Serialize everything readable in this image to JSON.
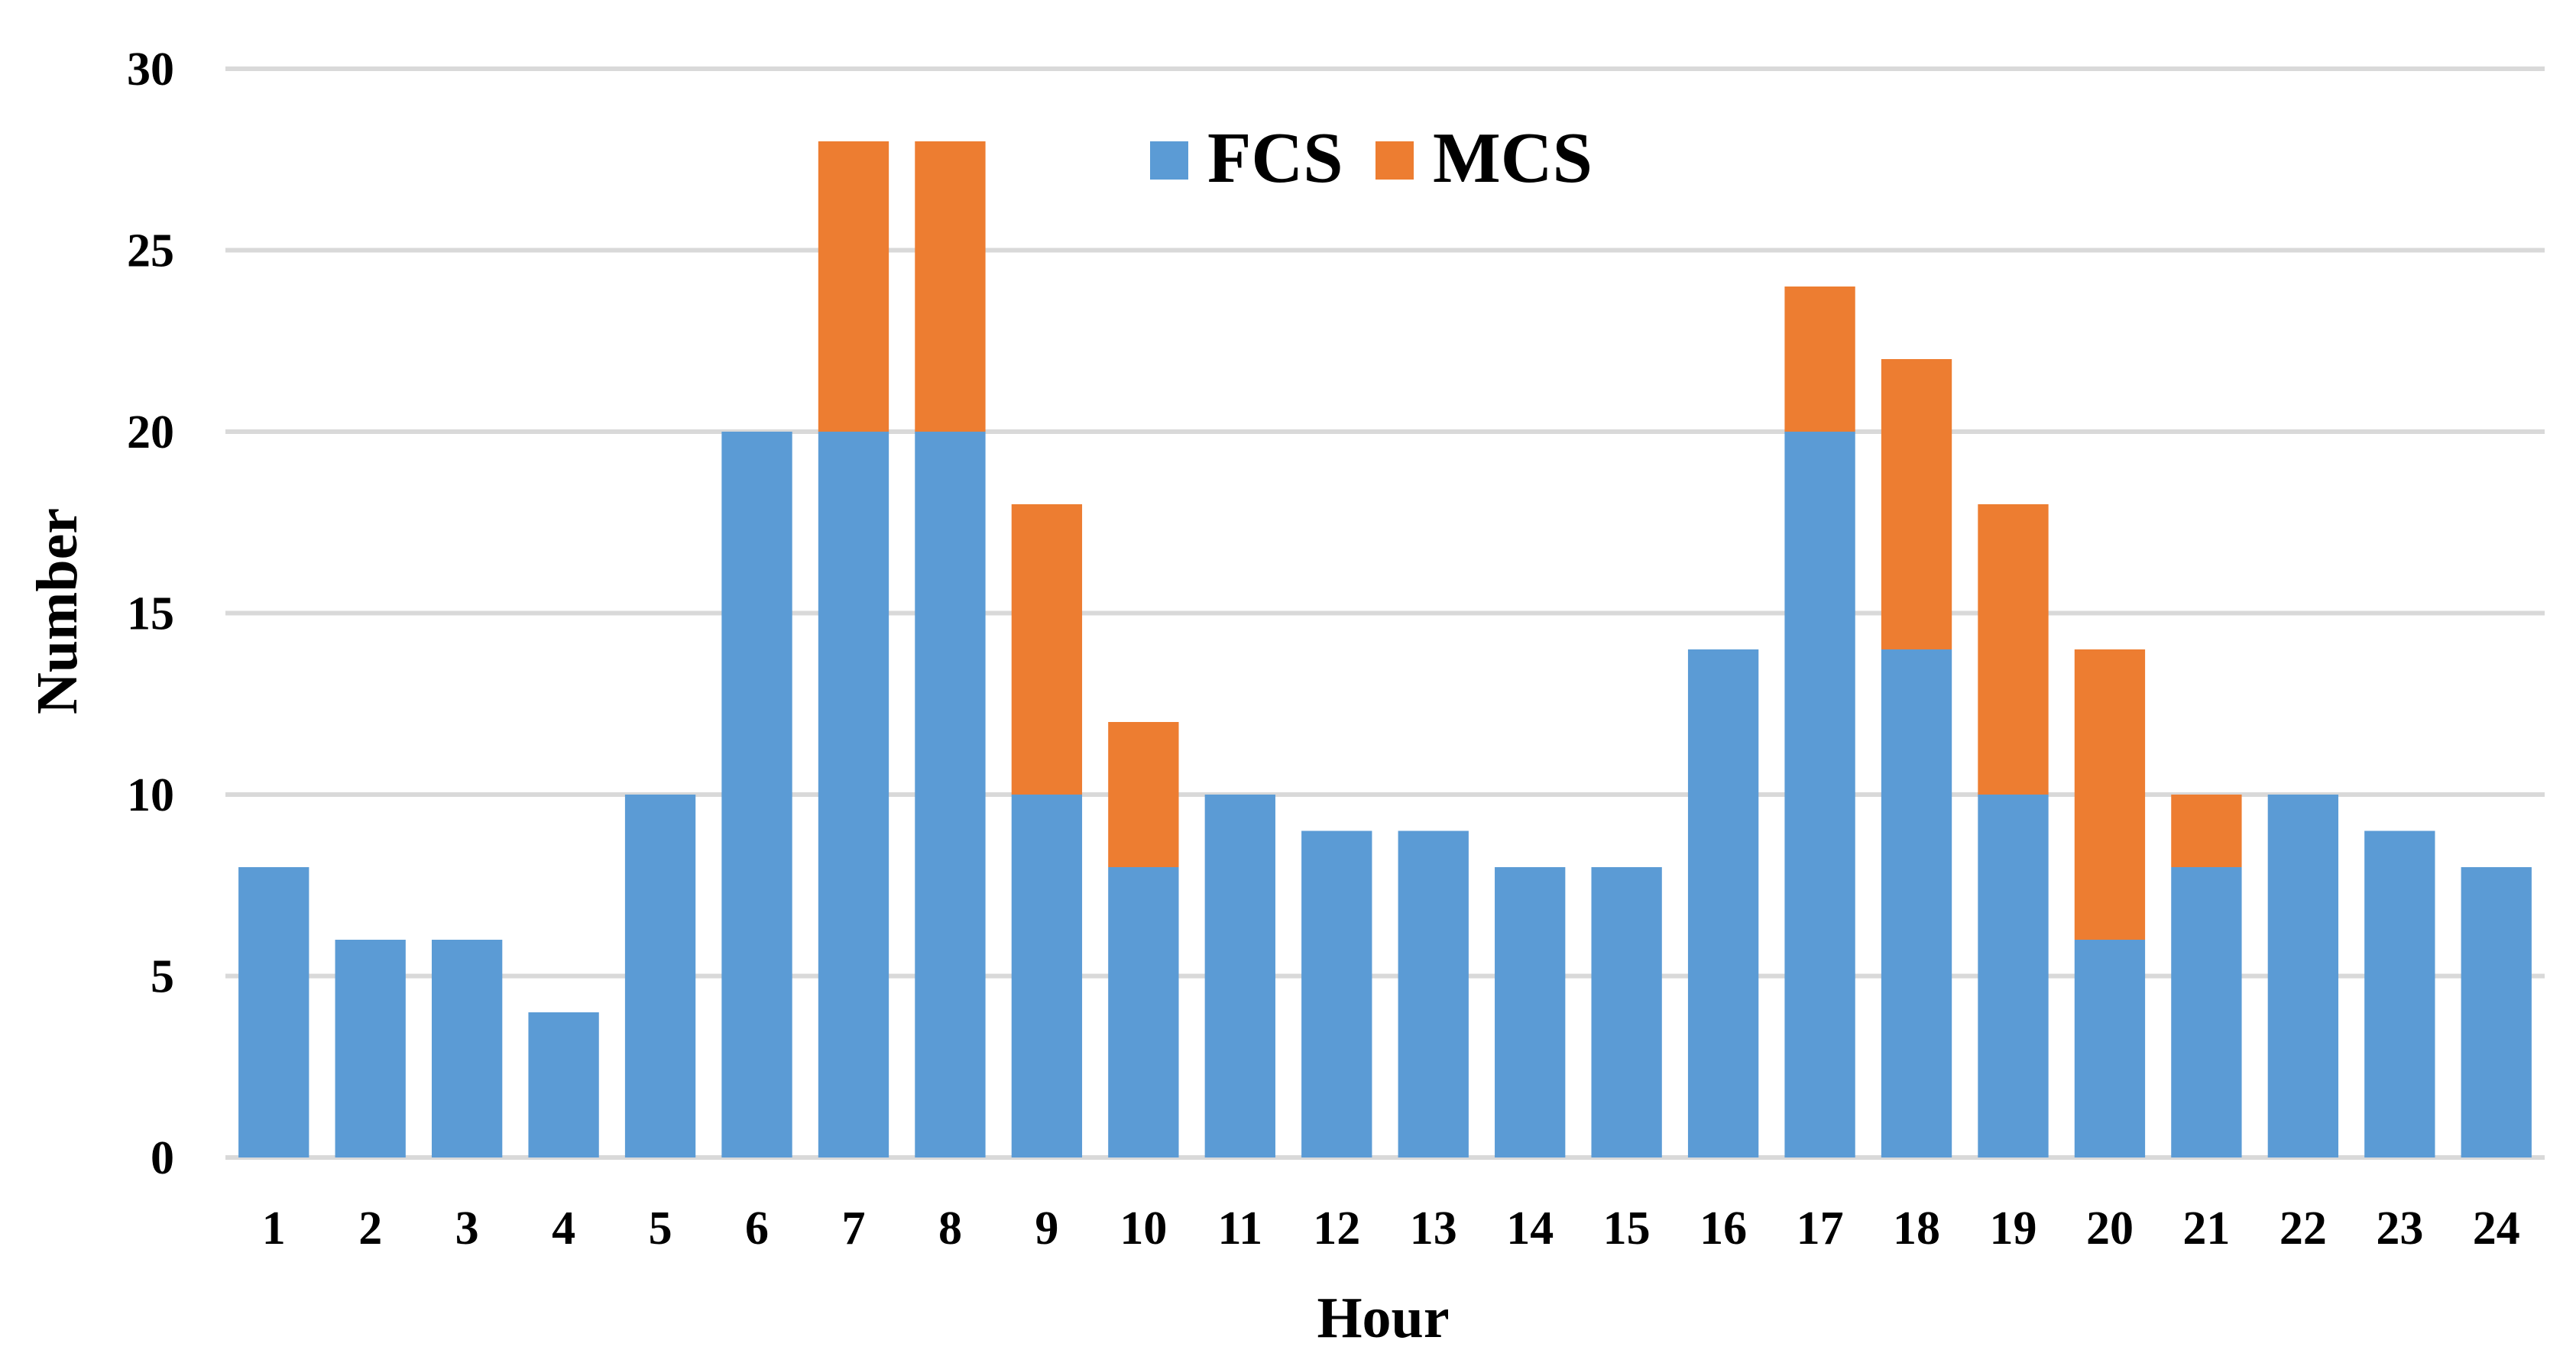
{
  "chart_data": {
    "type": "bar",
    "stacked": true,
    "title": "",
    "xlabel": "Hour",
    "ylabel": "Number",
    "categories": [
      "1",
      "2",
      "3",
      "4",
      "5",
      "6",
      "7",
      "8",
      "9",
      "10",
      "11",
      "12",
      "13",
      "14",
      "15",
      "16",
      "17",
      "18",
      "19",
      "20",
      "21",
      "22",
      "23",
      "24"
    ],
    "series": [
      {
        "name": "FCS",
        "color": "#5B9BD5",
        "values": [
          8,
          6,
          6,
          4,
          10,
          20,
          20,
          20,
          10,
          8,
          10,
          9,
          9,
          8,
          8,
          14,
          20,
          14,
          10,
          6,
          8,
          10,
          9,
          8
        ]
      },
      {
        "name": "MCS",
        "color": "#ED7D31",
        "values": [
          0,
          0,
          0,
          0,
          0,
          0,
          8,
          8,
          8,
          4,
          0,
          0,
          0,
          0,
          0,
          0,
          4,
          8,
          8,
          8,
          2,
          0,
          0,
          0
        ]
      }
    ],
    "ylim": [
      0,
      30
    ],
    "yticks": [
      0,
      5,
      10,
      15,
      20,
      25,
      30
    ],
    "grid": true,
    "legend_position": "top-center",
    "gridline_color": "#D9D9D9"
  }
}
